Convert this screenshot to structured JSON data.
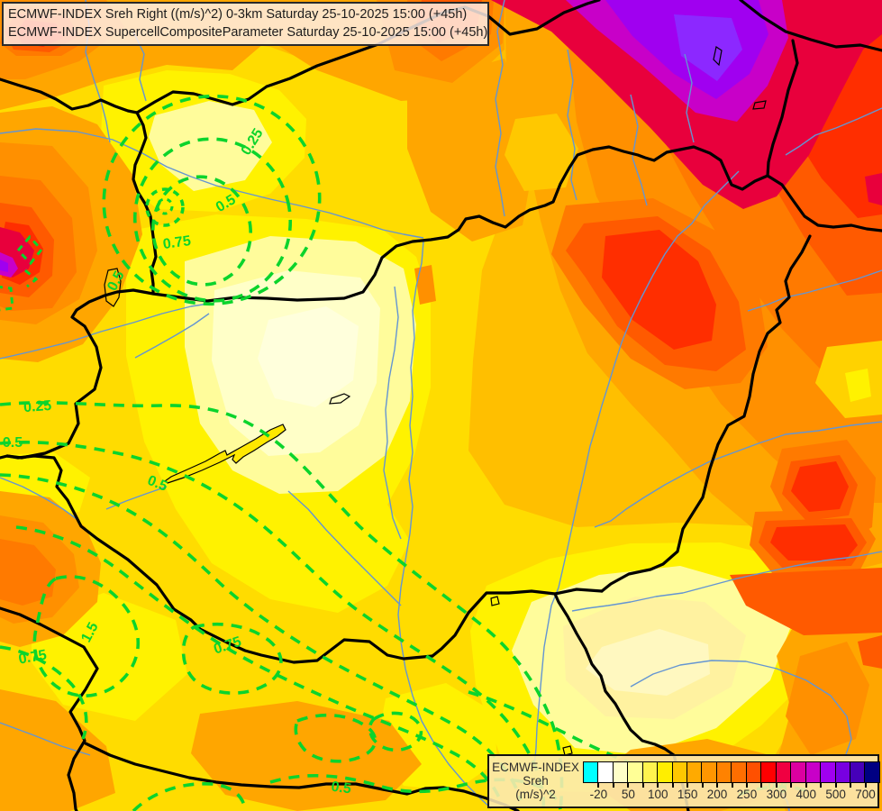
{
  "title": {
    "line1": "ECMWF-INDEX Sreh Right ((m/s)^2) 0-3km Saturday 25-10-2025 15:00 (+45h)",
    "line2": "ECMWF-INDEX SupercellCompositeParameter Saturday 25-10-2025 15:00 (+45h)"
  },
  "legend": {
    "product": "ECMWF-INDEX",
    "parameter": "Sreh",
    "units": "(m/s)^2",
    "tick_labels": [
      "-20",
      "50",
      "100",
      "150",
      "200",
      "250",
      "300",
      "400",
      "500",
      "700"
    ],
    "colors": [
      "#00FFFF",
      "#FFFFFF",
      "#FFFFC8",
      "#FFFF96",
      "#FFF44F",
      "#FFEE00",
      "#FFC800",
      "#FFAA00",
      "#FF9600",
      "#FF8200",
      "#FF6E00",
      "#FF5000",
      "#FF0000",
      "#F00041",
      "#DC00A0",
      "#C800C8",
      "#A000F0",
      "#7800E1",
      "#4600B9",
      "#000082"
    ]
  },
  "contours": {
    "parameter": "SupercellCompositeParameter",
    "color": "#0BD42C",
    "labels": [
      "0.25",
      "0.5",
      "0.75",
      "0.5",
      "0.25",
      "0.5",
      "0.5",
      "1.5",
      "0.75",
      "0.75",
      "0.5",
      "0.5"
    ]
  },
  "map": {
    "border_color": "#000000",
    "river_color": "#6495D2",
    "gray_river_color": "#8A93A5"
  }
}
